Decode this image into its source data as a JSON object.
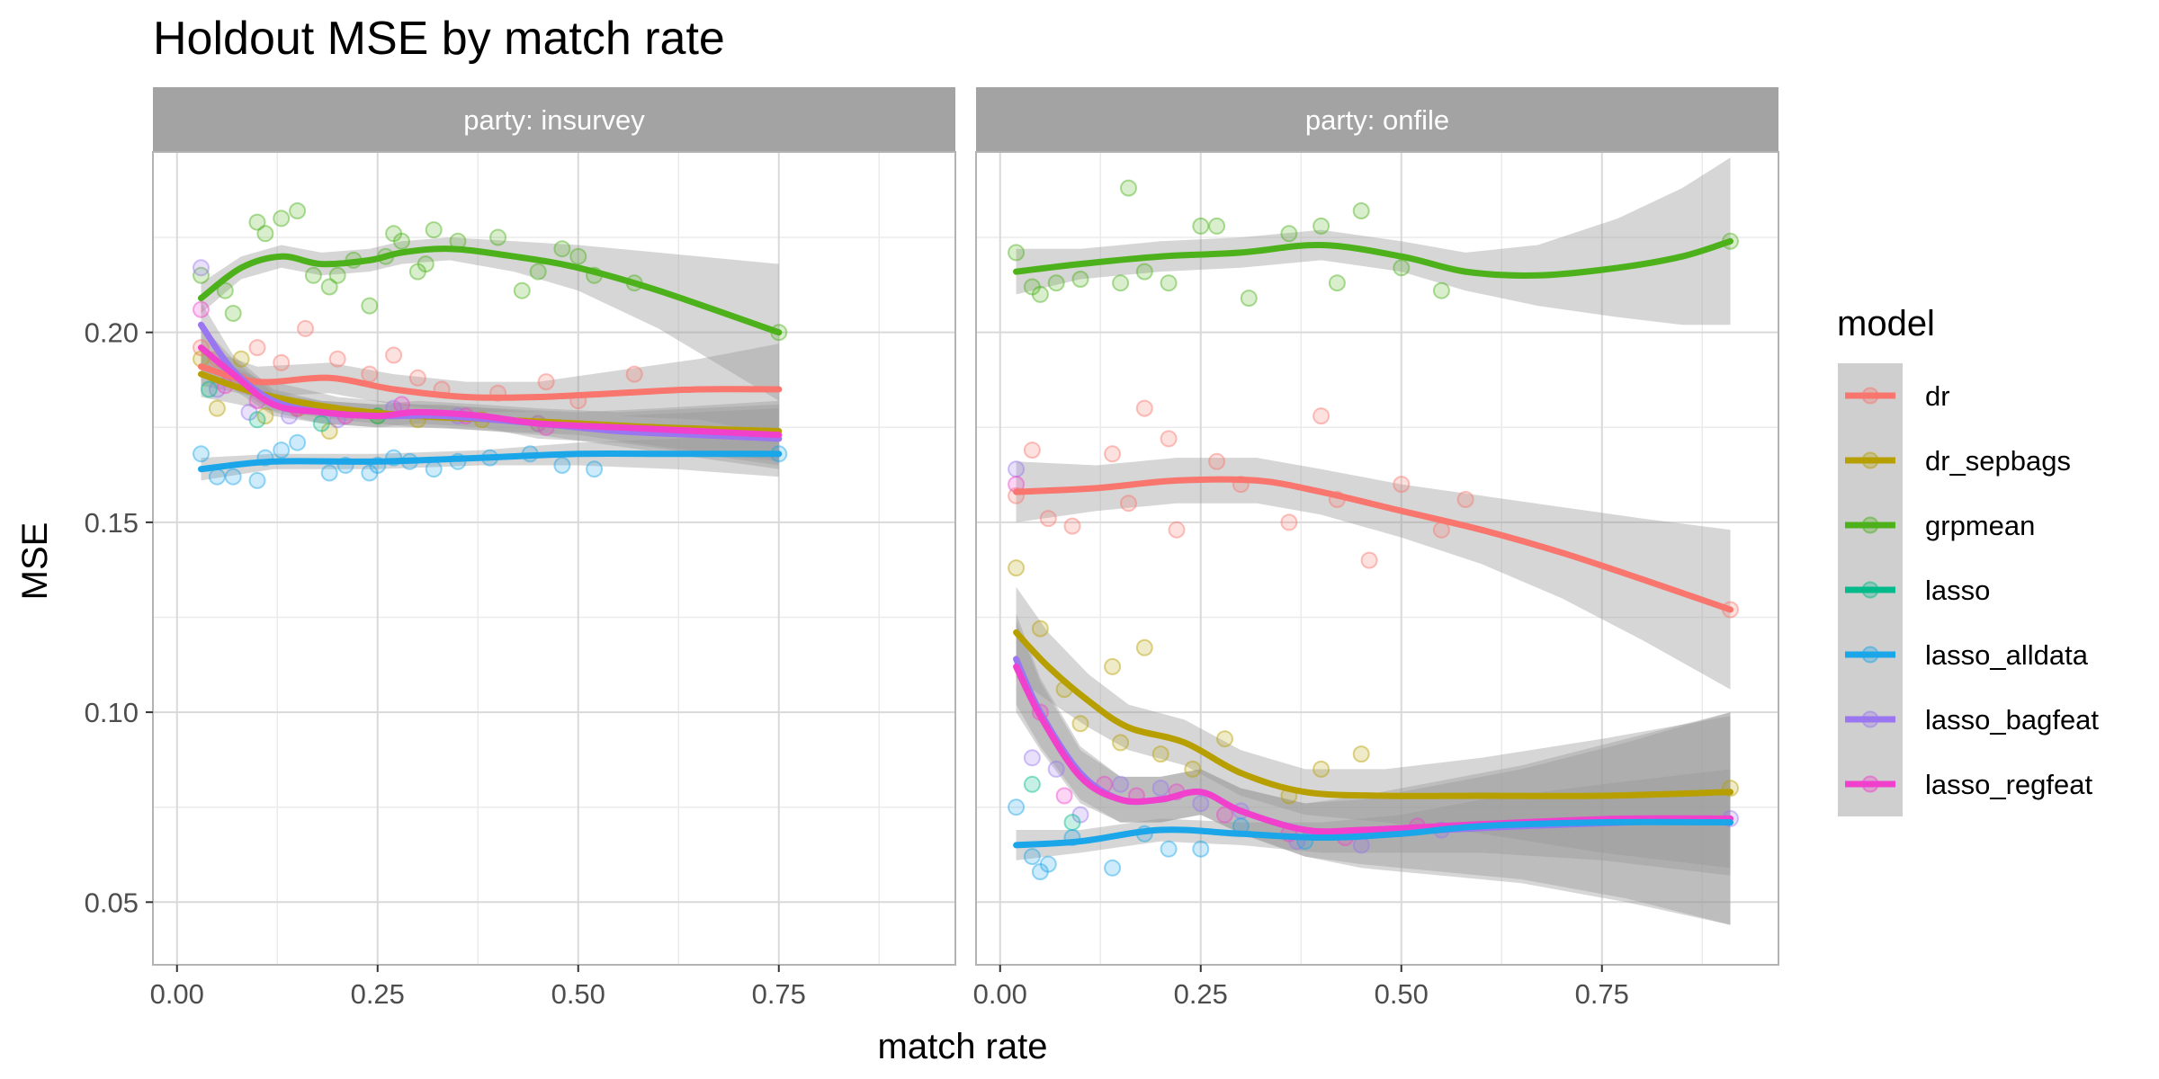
{
  "chart_data": {
    "type": "scatter",
    "title": "Holdout MSE by match rate",
    "xlabel": "match rate",
    "ylabel": "MSE",
    "xlim": [
      -0.03,
      0.97
    ],
    "ylim": [
      0.0335,
      0.2475
    ],
    "x_ticks": [
      "0.00",
      "0.25",
      "0.50",
      "0.75"
    ],
    "x_tick_values": [
      0,
      0.25,
      0.5,
      0.75
    ],
    "y_ticks": [
      "0.05",
      "0.10",
      "0.15",
      "0.20"
    ],
    "y_tick_values": [
      0.05,
      0.1,
      0.15,
      0.2
    ],
    "grid": true,
    "legend_position": "right",
    "legend_title": "model",
    "models": [
      {
        "name": "dr",
        "color": "#F8766D"
      },
      {
        "name": "dr_sepbags",
        "color": "#B79F00"
      },
      {
        "name": "grpmean",
        "color": "#4CB11A"
      },
      {
        "name": "lasso",
        "color": "#00BA8A"
      },
      {
        "name": "lasso_alldata",
        "color": "#1AA6E8"
      },
      {
        "name": "lasso_bagfeat",
        "color": "#9A76F0"
      },
      {
        "name": "lasso_regfeat",
        "color": "#F040CC"
      }
    ],
    "facets": [
      {
        "strip": "party: insurvey",
        "smooths": [
          {
            "model": "grpmean",
            "x": [
              0.03,
              0.08,
              0.13,
              0.18,
              0.24,
              0.28,
              0.34,
              0.42,
              0.5,
              0.6,
              0.75
            ],
            "y": [
              0.209,
              0.217,
              0.22,
              0.218,
              0.219,
              0.221,
              0.222,
              0.22,
              0.217,
              0.211,
              0.2
            ],
            "band": [
              0.004,
              0.003,
              0.003,
              0.003,
              0.003,
              0.003,
              0.003,
              0.004,
              0.006,
              0.01,
              0.018
            ]
          },
          {
            "model": "dr",
            "x": [
              0.03,
              0.1,
              0.19,
              0.27,
              0.36,
              0.45,
              0.55,
              0.65,
              0.75
            ],
            "y": [
              0.191,
              0.187,
              0.188,
              0.185,
              0.183,
              0.183,
              0.184,
              0.185,
              0.185
            ],
            "band": [
              0.005,
              0.004,
              0.004,
              0.004,
              0.004,
              0.004,
              0.006,
              0.008,
              0.012
            ]
          },
          {
            "model": "dr_sepbags",
            "x": [
              0.03,
              0.1,
              0.2,
              0.3,
              0.4,
              0.5,
              0.6,
              0.75
            ],
            "y": [
              0.189,
              0.184,
              0.18,
              0.178,
              0.177,
              0.176,
              0.175,
              0.174
            ],
            "band": [
              0.006,
              0.004,
              0.003,
              0.003,
              0.003,
              0.003,
              0.005,
              0.008
            ]
          },
          {
            "model": "lasso_bagfeat",
            "x": [
              0.03,
              0.07,
              0.12,
              0.18,
              0.25,
              0.33,
              0.45,
              0.55,
              0.65,
              0.75
            ],
            "y": [
              0.202,
              0.19,
              0.182,
              0.179,
              0.178,
              0.178,
              0.176,
              0.174,
              0.173,
              0.172
            ],
            "band": [
              0.006,
              0.004,
              0.003,
              0.003,
              0.003,
              0.003,
              0.003,
              0.004,
              0.006,
              0.008
            ]
          },
          {
            "model": "lasso_regfeat",
            "x": [
              0.03,
              0.07,
              0.12,
              0.18,
              0.25,
              0.3,
              0.38,
              0.45,
              0.55,
              0.65,
              0.75
            ],
            "y": [
              0.196,
              0.189,
              0.181,
              0.179,
              0.178,
              0.179,
              0.178,
              0.176,
              0.175,
              0.174,
              0.173
            ],
            "band": [
              0.006,
              0.004,
              0.003,
              0.003,
              0.003,
              0.003,
              0.003,
              0.004,
              0.004,
              0.006,
              0.008
            ]
          },
          {
            "model": "lasso_alldata",
            "x": [
              0.03,
              0.12,
              0.25,
              0.38,
              0.5,
              0.62,
              0.75
            ],
            "y": [
              0.164,
              0.166,
              0.166,
              0.167,
              0.168,
              0.168,
              0.168
            ],
            "band": [
              0.003,
              0.002,
              0.002,
              0.002,
              0.003,
              0.004,
              0.006
            ]
          }
        ],
        "points": [
          {
            "model": "grpmean",
            "x": [
              0.03,
              0.06,
              0.07,
              0.1,
              0.11,
              0.13,
              0.15,
              0.17,
              0.19,
              0.2,
              0.22,
              0.24,
              0.26,
              0.27,
              0.28,
              0.3,
              0.31,
              0.32,
              0.35,
              0.4,
              0.43,
              0.45,
              0.48,
              0.5,
              0.52,
              0.57,
              0.75
            ],
            "y": [
              0.215,
              0.211,
              0.205,
              0.229,
              0.226,
              0.23,
              0.232,
              0.215,
              0.212,
              0.215,
              0.219,
              0.207,
              0.22,
              0.226,
              0.224,
              0.216,
              0.218,
              0.227,
              0.224,
              0.225,
              0.211,
              0.216,
              0.222,
              0.22,
              0.215,
              0.213,
              0.2
            ]
          },
          {
            "model": "dr",
            "x": [
              0.03,
              0.05,
              0.08,
              0.1,
              0.13,
              0.16,
              0.2,
              0.24,
              0.27,
              0.3,
              0.33,
              0.4,
              0.46,
              0.5,
              0.57
            ],
            "y": [
              0.196,
              0.193,
              0.187,
              0.196,
              0.192,
              0.201,
              0.193,
              0.189,
              0.194,
              0.188,
              0.185,
              0.184,
              0.187,
              0.182,
              0.189
            ]
          },
          {
            "model": "dr_sepbags",
            "x": [
              0.03,
              0.05,
              0.08,
              0.11,
              0.15,
              0.19,
              0.25,
              0.3,
              0.38,
              0.45
            ],
            "y": [
              0.193,
              0.18,
              0.193,
              0.178,
              0.18,
              0.174,
              0.178,
              0.177,
              0.177,
              0.176
            ]
          },
          {
            "model": "lasso_bagfeat",
            "x": [
              0.03,
              0.05,
              0.09,
              0.14,
              0.2,
              0.27,
              0.35,
              0.45
            ],
            "y": [
              0.217,
              0.185,
              0.179,
              0.178,
              0.177,
              0.18,
              0.178,
              0.176
            ]
          },
          {
            "model": "lasso_regfeat",
            "x": [
              0.03,
              0.06,
              0.1,
              0.15,
              0.21,
              0.28,
              0.36,
              0.46
            ],
            "y": [
              0.206,
              0.186,
              0.182,
              0.18,
              0.178,
              0.181,
              0.178,
              0.175
            ]
          },
          {
            "model": "lasso",
            "x": [
              0.04,
              0.1,
              0.18,
              0.25
            ],
            "y": [
              0.185,
              0.177,
              0.176,
              0.178
            ]
          },
          {
            "model": "lasso_alldata",
            "x": [
              0.03,
              0.05,
              0.07,
              0.1,
              0.11,
              0.13,
              0.15,
              0.19,
              0.21,
              0.24,
              0.25,
              0.27,
              0.29,
              0.32,
              0.35,
              0.39,
              0.44,
              0.48,
              0.52,
              0.75
            ],
            "y": [
              0.168,
              0.162,
              0.162,
              0.161,
              0.167,
              0.169,
              0.171,
              0.163,
              0.165,
              0.163,
              0.165,
              0.167,
              0.166,
              0.164,
              0.166,
              0.167,
              0.168,
              0.165,
              0.164,
              0.168
            ]
          }
        ]
      },
      {
        "strip": "party: onfile",
        "smooths": [
          {
            "model": "grpmean",
            "x": [
              0.02,
              0.1,
              0.2,
              0.3,
              0.4,
              0.5,
              0.58,
              0.67,
              0.77,
              0.85,
              0.91
            ],
            "y": [
              0.216,
              0.218,
              0.22,
              0.221,
              0.223,
              0.22,
              0.216,
              0.215,
              0.217,
              0.22,
              0.224
            ],
            "band": [
              0.006,
              0.004,
              0.004,
              0.004,
              0.004,
              0.004,
              0.005,
              0.008,
              0.013,
              0.018,
              0.022
            ]
          },
          {
            "model": "dr",
            "x": [
              0.02,
              0.12,
              0.22,
              0.32,
              0.4,
              0.5,
              0.6,
              0.7,
              0.8,
              0.91
            ],
            "y": [
              0.158,
              0.159,
              0.161,
              0.161,
              0.158,
              0.153,
              0.148,
              0.142,
              0.135,
              0.127
            ],
            "band": [
              0.008,
              0.006,
              0.006,
              0.006,
              0.006,
              0.007,
              0.009,
              0.012,
              0.016,
              0.021
            ]
          },
          {
            "model": "dr_sepbags",
            "x": [
              0.02,
              0.06,
              0.11,
              0.16,
              0.23,
              0.3,
              0.38,
              0.48,
              0.6,
              0.75,
              0.91
            ],
            "y": [
              0.121,
              0.112,
              0.103,
              0.096,
              0.092,
              0.084,
              0.079,
              0.078,
              0.078,
              0.078,
              0.079
            ],
            "band": [
              0.012,
              0.009,
              0.007,
              0.006,
              0.006,
              0.006,
              0.006,
              0.007,
              0.01,
              0.015,
              0.02
            ]
          },
          {
            "model": "lasso_bagfeat",
            "x": [
              0.02,
              0.05,
              0.1,
              0.15,
              0.2,
              0.25,
              0.3,
              0.38,
              0.45,
              0.55,
              0.65,
              0.78,
              0.91
            ],
            "y": [
              0.114,
              0.1,
              0.084,
              0.077,
              0.077,
              0.079,
              0.074,
              0.069,
              0.068,
              0.069,
              0.07,
              0.071,
              0.072
            ],
            "band": [
              0.012,
              0.009,
              0.007,
              0.006,
              0.006,
              0.006,
              0.006,
              0.007,
              0.009,
              0.012,
              0.015,
              0.021,
              0.028
            ]
          },
          {
            "model": "lasso_regfeat",
            "x": [
              0.02,
              0.05,
              0.1,
              0.15,
              0.2,
              0.25,
              0.3,
              0.38,
              0.45,
              0.55,
              0.65,
              0.78,
              0.91
            ],
            "y": [
              0.112,
              0.099,
              0.083,
              0.077,
              0.077,
              0.079,
              0.074,
              0.069,
              0.069,
              0.07,
              0.071,
              0.072,
              0.072
            ],
            "band": [
              0.012,
              0.009,
              0.007,
              0.006,
              0.006,
              0.006,
              0.006,
              0.007,
              0.009,
              0.012,
              0.015,
              0.021,
              0.028
            ]
          },
          {
            "model": "lasso_alldata",
            "x": [
              0.02,
              0.1,
              0.2,
              0.3,
              0.4,
              0.5,
              0.6,
              0.75,
              0.91
            ],
            "y": [
              0.065,
              0.066,
              0.069,
              0.068,
              0.067,
              0.068,
              0.07,
              0.071,
              0.071
            ],
            "band": [
              0.004,
              0.003,
              0.003,
              0.003,
              0.004,
              0.005,
              0.007,
              0.01,
              0.014
            ]
          }
        ],
        "points": [
          {
            "model": "grpmean",
            "x": [
              0.02,
              0.04,
              0.05,
              0.07,
              0.1,
              0.15,
              0.16,
              0.18,
              0.21,
              0.25,
              0.27,
              0.31,
              0.36,
              0.4,
              0.42,
              0.45,
              0.5,
              0.55,
              0.91
            ],
            "y": [
              0.221,
              0.212,
              0.21,
              0.213,
              0.214,
              0.213,
              0.238,
              0.216,
              0.213,
              0.228,
              0.228,
              0.209,
              0.226,
              0.228,
              0.213,
              0.232,
              0.217,
              0.211,
              0.224
            ]
          },
          {
            "model": "dr",
            "x": [
              0.02,
              0.04,
              0.06,
              0.09,
              0.14,
              0.16,
              0.18,
              0.21,
              0.22,
              0.27,
              0.3,
              0.36,
              0.4,
              0.42,
              0.46,
              0.5,
              0.55,
              0.58,
              0.91
            ],
            "y": [
              0.157,
              0.169,
              0.151,
              0.149,
              0.168,
              0.155,
              0.18,
              0.172,
              0.148,
              0.166,
              0.16,
              0.15,
              0.178,
              0.156,
              0.14,
              0.16,
              0.148,
              0.156,
              0.127
            ]
          },
          {
            "model": "dr_sepbags",
            "x": [
              0.02,
              0.05,
              0.08,
              0.1,
              0.14,
              0.15,
              0.18,
              0.2,
              0.24,
              0.28,
              0.36,
              0.4,
              0.45,
              0.91
            ],
            "y": [
              0.138,
              0.122,
              0.106,
              0.097,
              0.112,
              0.092,
              0.117,
              0.089,
              0.085,
              0.093,
              0.078,
              0.085,
              0.089,
              0.08
            ]
          },
          {
            "model": "lasso_bagfeat",
            "x": [
              0.02,
              0.04,
              0.07,
              0.1,
              0.15,
              0.2,
              0.25,
              0.3,
              0.37,
              0.45,
              0.55,
              0.91
            ],
            "y": [
              0.164,
              0.088,
              0.085,
              0.073,
              0.081,
              0.08,
              0.076,
              0.074,
              0.066,
              0.065,
              0.069,
              0.072
            ]
          },
          {
            "model": "lasso_regfeat",
            "x": [
              0.02,
              0.05,
              0.08,
              0.13,
              0.17,
              0.22,
              0.28,
              0.36,
              0.43,
              0.52
            ],
            "y": [
              0.16,
              0.1,
              0.078,
              0.081,
              0.078,
              0.079,
              0.073,
              0.068,
              0.067,
              0.07
            ]
          },
          {
            "model": "lasso",
            "x": [
              0.04,
              0.09
            ],
            "y": [
              0.081,
              0.071
            ]
          },
          {
            "model": "lasso_alldata",
            "x": [
              0.02,
              0.04,
              0.05,
              0.06,
              0.09,
              0.14,
              0.18,
              0.21,
              0.25,
              0.3,
              0.38
            ],
            "y": [
              0.075,
              0.062,
              0.058,
              0.06,
              0.067,
              0.059,
              0.068,
              0.064,
              0.064,
              0.07,
              0.066
            ]
          }
        ]
      }
    ]
  }
}
